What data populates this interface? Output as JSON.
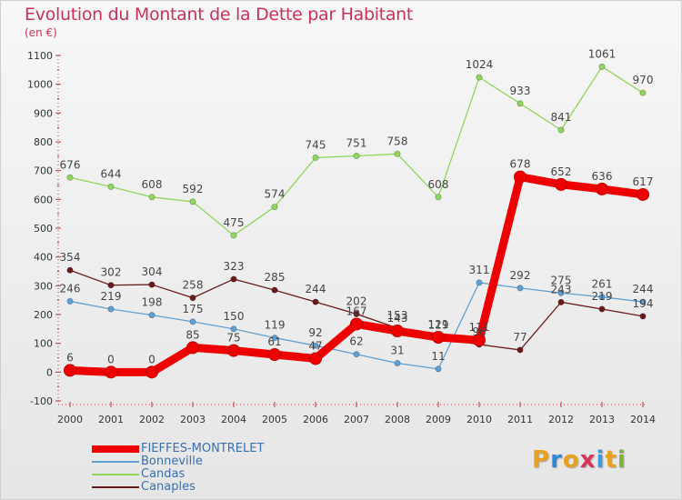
{
  "title": "Evolution du Montant de la Dette par Habitant",
  "unit": "(en €)",
  "logo": {
    "letters": [
      "P",
      "r",
      "o",
      "x",
      "i",
      "t",
      "i"
    ],
    "colors": [
      "#e8a020",
      "#2e8ad8",
      "#e8a020",
      "#d9365e",
      "#3b9ae0",
      "#e8a020",
      "#7bb43a"
    ]
  },
  "chart_data": {
    "type": "line",
    "x": [
      2000,
      2001,
      2002,
      2003,
      2004,
      2005,
      2006,
      2007,
      2008,
      2009,
      2010,
      2011,
      2012,
      2013,
      2014
    ],
    "ylim": [
      -100,
      1100
    ],
    "yticks": [
      -100,
      0,
      100,
      200,
      300,
      400,
      500,
      600,
      700,
      800,
      900,
      1000,
      1100
    ],
    "grid": false,
    "legend_position": "bottom-left",
    "series": [
      {
        "name": "FIEFFES-MONTRELET",
        "color": "#ee0000",
        "values": [
          6,
          0,
          0,
          85,
          75,
          61,
          47,
          167,
          143,
          121,
          111,
          678,
          652,
          636,
          617
        ],
        "labels": [
          "6",
          "0",
          "0",
          "85",
          "75",
          "61",
          "47",
          "167",
          "143",
          "121",
          "111",
          "678",
          "652",
          "636",
          "617"
        ]
      },
      {
        "name": "Bonneville",
        "color": "#5fa0d4",
        "values": [
          246,
          219,
          198,
          175,
          150,
          119,
          92,
          62,
          31,
          11,
          311,
          292,
          275,
          261,
          244
        ],
        "labels": [
          "246",
          "219",
          "198",
          "175",
          "150",
          "119",
          "92",
          "62",
          "31",
          "11",
          "311",
          "292",
          "275",
          "261",
          "244"
        ]
      },
      {
        "name": "Candas",
        "color": "#8fd65a",
        "values": [
          676,
          644,
          608,
          592,
          475,
          574,
          745,
          751,
          758,
          608,
          1024,
          933,
          841,
          1061,
          970
        ],
        "labels": [
          "676",
          "644",
          "608",
          "592",
          "475",
          "574",
          "745",
          "751",
          "758",
          "608",
          "1024",
          "933",
          "841",
          "1061",
          "970"
        ]
      },
      {
        "name": "Canaples",
        "color": "#6b1a1a",
        "values": [
          354,
          302,
          304,
          258,
          323,
          285,
          244,
          202,
          153,
          119,
          96,
          77,
          243,
          219,
          194
        ],
        "labels": [
          "354",
          "302",
          "304",
          "258",
          "323",
          "285",
          "244",
          "202",
          "153",
          "119",
          "96",
          "77",
          "243",
          "219",
          "194"
        ]
      }
    ]
  }
}
